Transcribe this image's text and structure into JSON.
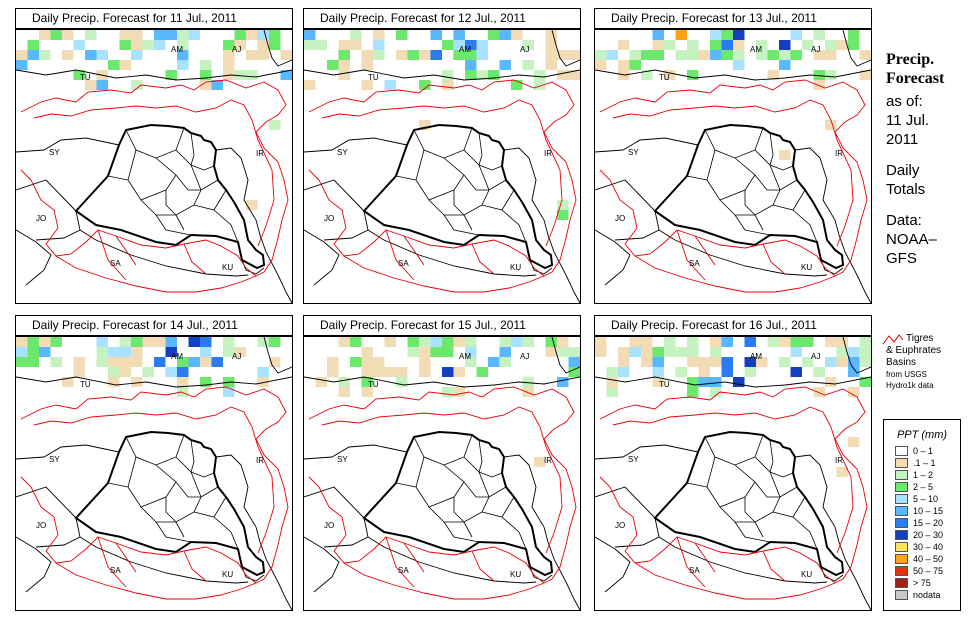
{
  "panels": [
    {
      "title": "Daily Precip. Forecast for  11 Jul., 2011"
    },
    {
      "title": "Daily Precip. Forecast for  12 Jul., 2011"
    },
    {
      "title": "Daily Precip. Forecast for  13 Jul., 2011"
    },
    {
      "title": "Daily Precip. Forecast for  14 Jul., 2011"
    },
    {
      "title": "Daily Precip. Forecast for  15 Jul., 2011"
    },
    {
      "title": "Daily Precip. Forecast for  16 Jul., 2011"
    }
  ],
  "country_labels": [
    "AM",
    "AJ",
    "TU",
    "SY",
    "IR",
    "JO",
    "SA",
    "KU"
  ],
  "sidebar": {
    "heading1": "Precip.",
    "heading2": "Forecast",
    "asof_label": "as of:",
    "date1": "11 Jul.",
    "date2": "2011",
    "totals1": "Daily",
    "totals2": "Totals",
    "data_label": "Data:",
    "source1": "NOAA–",
    "source2": "GFS"
  },
  "basin_legend": {
    "line1": "Tigres",
    "line2": "& Euphrates",
    "line3": "Basins",
    "line4": "from USGS",
    "line5": "Hydro1k data",
    "color": "#e8000b"
  },
  "legend": {
    "title": "PPT (mm)",
    "items": [
      {
        "label": "0 – 1",
        "color": "#ffffff"
      },
      {
        "label": ".1 – 1",
        "color": "#f1dcb6"
      },
      {
        "label": "1 – 2",
        "color": "#c6f2c2"
      },
      {
        "label": "2 – 5",
        "color": "#6ce86c"
      },
      {
        "label": "5 – 10",
        "color": "#a8e2ff"
      },
      {
        "label": "10 – 15",
        "color": "#5ab8ff"
      },
      {
        "label": "15 – 20",
        "color": "#2a7cf0"
      },
      {
        "label": "20 – 30",
        "color": "#1440c0"
      },
      {
        "label": "30 – 40",
        "color": "#ffe35a"
      },
      {
        "label": "40 – 50",
        "color": "#ffa214"
      },
      {
        "label": "50 – 75",
        "color": "#e8300c"
      },
      {
        "label": "> 75",
        "color": "#a0201a"
      },
      {
        "label": "nodata",
        "color": "#c8c8c8"
      }
    ]
  }
}
